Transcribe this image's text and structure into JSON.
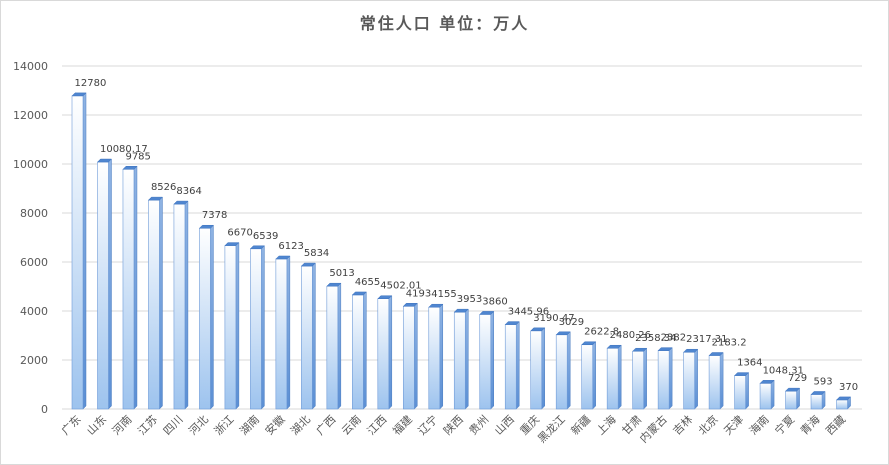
{
  "chart_data": {
    "type": "bar",
    "title": "常住人口 单位：万人",
    "xlabel": "",
    "ylabel": "",
    "ylim": [
      0,
      14000
    ],
    "yticks": [
      0,
      2000,
      4000,
      6000,
      8000,
      10000,
      12000,
      14000
    ],
    "grid": true,
    "legend": "none",
    "bar_color": "#9dc3ee",
    "bar_dark": "#5b8fd4",
    "categories": [
      "广东",
      "山东",
      "河南",
      "江苏",
      "四川",
      "河北",
      "浙江",
      "湖南",
      "安徽",
      "湖北",
      "广西",
      "云南",
      "江西",
      "福建",
      "辽宁",
      "陕西",
      "贵州",
      "山西",
      "重庆",
      "黑龙江",
      "新疆",
      "上海",
      "甘肃",
      "内蒙古",
      "吉林",
      "北京",
      "天津",
      "海南",
      "宁夏",
      "青海",
      "西藏"
    ],
    "values": [
      12780,
      10080.17,
      9785,
      8526,
      8364,
      7378,
      6670,
      6539,
      6123,
      5834,
      5013,
      4655,
      4502.01,
      4193,
      4155,
      3953,
      3860,
      3445.96,
      3190.47,
      3029,
      2622.8,
      2480.26,
      2358.34,
      2382,
      2317.31,
      2183.2,
      1364,
      1048.31,
      729,
      593,
      370
    ],
    "data_labels": [
      "12780",
      "10080.17",
      "9785",
      "8526",
      "8364",
      "7378",
      "6670",
      "6539",
      "6123",
      "5834",
      "5013",
      "4655",
      "4502.01",
      "4193",
      "4155",
      "3953",
      "3860",
      "3445.96",
      "3190.47",
      "3029",
      "2622.8",
      "2480.26",
      "2358.34",
      "2382",
      "2317.31",
      "2183.2",
      "1364",
      "1048.31",
      "729",
      "593",
      "370"
    ]
  }
}
